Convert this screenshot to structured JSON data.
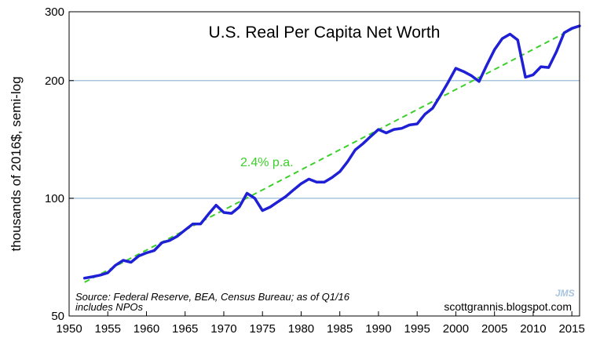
{
  "chart_data": {
    "type": "line",
    "title": "U.S. Real Per Capita Net Worth",
    "ylabel": "thousands of 2016$, semi-log",
    "xlabel": "",
    "y_scale": "log",
    "xlim": [
      1950,
      2016
    ],
    "ylim": [
      50,
      300
    ],
    "x_ticks": [
      1950,
      1955,
      1960,
      1965,
      1970,
      1975,
      1980,
      1985,
      1990,
      1995,
      2000,
      2005,
      2010,
      2015
    ],
    "y_ticks": [
      50,
      100,
      200,
      300
    ],
    "grid": "horizontal at 100 and 200",
    "series": [
      {
        "x": [
          1952,
          1953,
          1954,
          1955,
          1956,
          1957,
          1958,
          1959,
          1960,
          1961,
          1962,
          1963,
          1964,
          1965,
          1966,
          1967,
          1968,
          1969,
          1970,
          1971,
          1972,
          1973,
          1974,
          1975,
          1976,
          1977,
          1978,
          1979,
          1980,
          1981,
          1982,
          1983,
          1984,
          1985,
          1986,
          1987,
          1988,
          1989,
          1990,
          1991,
          1992,
          1993,
          1994,
          1995,
          1996,
          1997,
          1998,
          1999,
          2000,
          2001,
          2002,
          2003,
          2004,
          2005,
          2006,
          2007,
          2008,
          2009,
          2010,
          2011,
          2012,
          2013,
          2014,
          2015,
          2016
        ],
        "y": [
          62.5,
          63.0,
          63.6,
          64.5,
          67.4,
          69.4,
          68.6,
          71.2,
          72.5,
          73.5,
          77.0,
          78.0,
          80.0,
          83.0,
          86.0,
          86.0,
          91.0,
          96.0,
          92.0,
          91.5,
          95.0,
          103.0,
          100.0,
          93.0,
          95.0,
          98.0,
          101.0,
          105.0,
          109.0,
          112.0,
          110.0,
          110.0,
          113.0,
          117.0,
          124.0,
          133.0,
          138.0,
          144.0,
          150.0,
          147.0,
          150.0,
          151.0,
          154.0,
          155.0,
          164.0,
          170.0,
          183.0,
          198.0,
          215.0,
          211.0,
          206.0,
          199.0,
          219.0,
          240.0,
          256.0,
          263.0,
          254.0,
          204.0,
          207.0,
          217.0,
          216.0,
          237.0,
          265.0,
          272.0,
          276.0
        ]
      }
    ],
    "trend": {
      "label": "2.4% p.a.",
      "x": [
        1952,
        2016
      ],
      "y": [
        61.0,
        277.0
      ]
    }
  },
  "annotations": {
    "source": "Source: Federal Reserve, BEA, Census Bureau; as of Q1/16",
    "source2": "includes NPOs",
    "site": "scottgrannis.blogspot.com",
    "jms": "JMS"
  },
  "colors": {
    "series": "#1f1fd6",
    "trend": "#3ccf2c",
    "grid": "#a9c4de",
    "axis": "#000000"
  }
}
